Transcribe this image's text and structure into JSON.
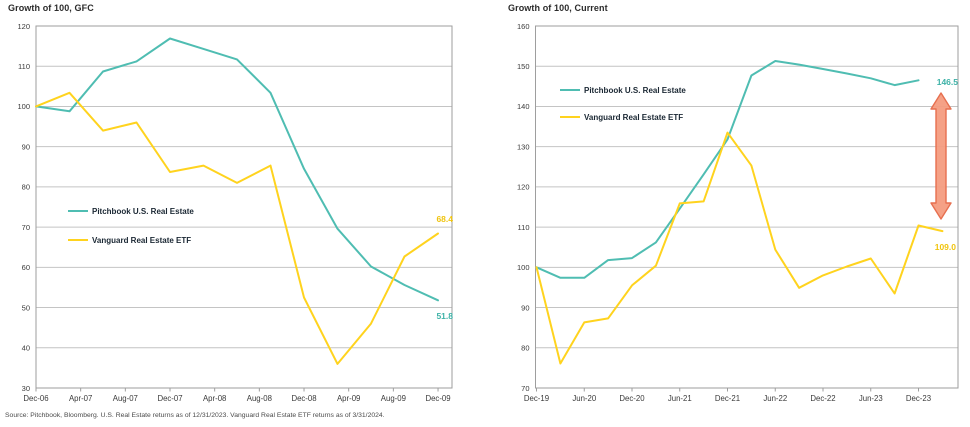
{
  "source": "Source: Pitchbook, Bloomberg. U.S. Real Estate returns as of 12/31/2023. Vanguard Real Estate ETF returns as of 3/31/2024.",
  "chart_data": [
    {
      "type": "line",
      "title": "Growth of 100, GFC",
      "ylim": [
        30,
        120
      ],
      "ytick_step": 10,
      "grid": true,
      "legend_position": "inside-left-middle",
      "x_tick_labels": [
        "Dec-06",
        "Apr-07",
        "Aug-07",
        "Dec-07",
        "Apr-08",
        "Aug-08",
        "Dec-08",
        "Apr-09",
        "Aug-09",
        "Dec-09"
      ],
      "x_points": [
        "Dec-06",
        "Mar-07",
        "Jun-07",
        "Sep-07",
        "Dec-07",
        "Mar-08",
        "Jun-08",
        "Sep-08",
        "Dec-08",
        "Mar-09",
        "Jun-09",
        "Sep-09",
        "Dec-09"
      ],
      "series": [
        {
          "name": "Pitchbook U.S. Real Estate",
          "color": "#4FBDB2",
          "label_color": "#3DB2A7",
          "end_label": "51.8",
          "values": [
            100,
            98.8,
            108.7,
            111.2,
            116.9,
            114.3,
            111.7,
            103.4,
            84.5,
            69.6,
            60.2,
            55.6,
            51.8
          ]
        },
        {
          "name": "Vanguard Real Estate ETF",
          "color": "#FFD31E",
          "label_color": "#F0C40E",
          "end_label": "68.4",
          "values": [
            100,
            103.4,
            94.0,
            96.0,
            83.7,
            85.3,
            81.0,
            85.3,
            52.5,
            36.0,
            46.0,
            62.7,
            68.4
          ]
        }
      ]
    },
    {
      "type": "line",
      "title": "Growth of 100, Current",
      "ylim": [
        70,
        160
      ],
      "ytick_step": 10,
      "grid": true,
      "legend_position": "inside-left-top",
      "x_tick_labels": [
        "Dec-19",
        "Jun-20",
        "Dec-20",
        "Jun-21",
        "Dec-21",
        "Jun-22",
        "Dec-22",
        "Jun-23",
        "Dec-23"
      ],
      "x_points": [
        "Dec-19",
        "Mar-20",
        "Jun-20",
        "Sep-20",
        "Dec-20",
        "Mar-21",
        "Jun-21",
        "Sep-21",
        "Dec-21",
        "Mar-22",
        "Jun-22",
        "Sep-22",
        "Dec-22",
        "Mar-23",
        "Jun-23",
        "Sep-23",
        "Dec-23",
        "Mar-24"
      ],
      "series": [
        {
          "name": "Pitchbook U.S. Real Estate",
          "color": "#4FBDB2",
          "label_color": "#3DB2A7",
          "end_label": "146.5",
          "values": [
            100,
            97.4,
            97.4,
            101.8,
            102.3,
            106.2,
            114.6,
            123.1,
            131.8,
            147.7,
            151.3,
            150.4,
            149.3,
            148.2,
            147.0,
            145.3,
            146.5
          ]
        },
        {
          "name": "Vanguard Real Estate ETF",
          "color": "#FFD31E",
          "label_color": "#F0C40E",
          "end_label": "109.0",
          "values": [
            100,
            76.1,
            86.3,
            87.3,
            95.5,
            100.4,
            115.9,
            116.4,
            133.5,
            125.3,
            104.4,
            94.9,
            98.0,
            100.2,
            102.2,
            93.5,
            110.4,
            109.0
          ]
        }
      ],
      "annotation": {
        "type": "vertical-double-arrow",
        "meaning": "gap between Pitchbook 146.5 and Vanguard 109.0",
        "fill": "#F49C80",
        "stroke": "#E76F4F"
      }
    }
  ],
  "style_colors": {
    "gridline": "#C4C4C4",
    "plot_border": "#9E9E9E",
    "axis_text": "#3A3A3A",
    "legend_text": "#1A2733"
  }
}
